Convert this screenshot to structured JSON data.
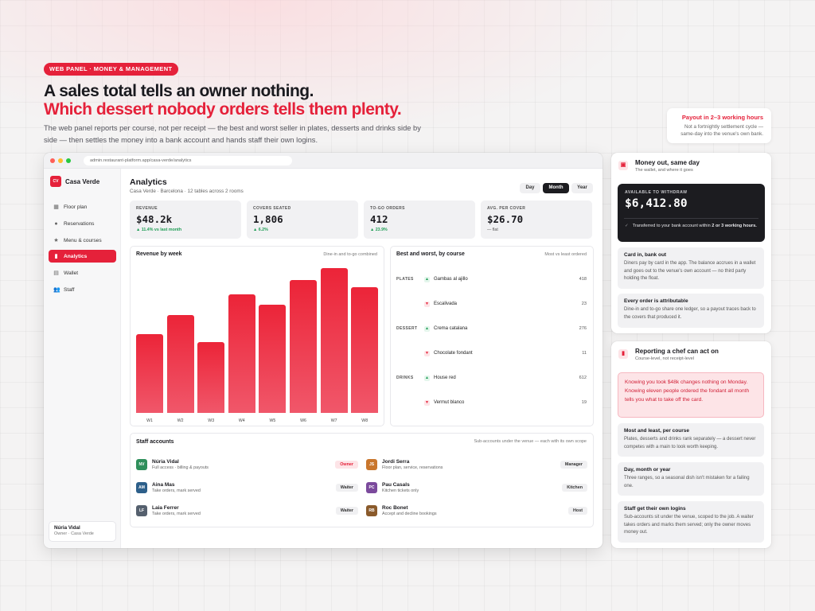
{
  "hero": {
    "eyebrow": "Web panel · Money & Management",
    "headline_1": "A sales total tells an owner nothing.",
    "headline_2": "Which dessert nobody orders tells them plenty.",
    "lede": "The web panel reports per course, not per receipt — the best and worst seller in plates, desserts and drinks side by side — then settles the money into a bank account and hands staff their own logins."
  },
  "payout_note": {
    "title": "Payout in 2–3 working hours",
    "text": "Not a fortnightly settlement cycle — same-day into the venue's own bank."
  },
  "browser": {
    "url": "admin.restaurant-platform.app/casa-verde/analytics"
  },
  "sidebar": {
    "logo": "CV",
    "venue": "Casa Verde",
    "items": [
      {
        "label": "Floor plan",
        "icon": "grid-icon"
      },
      {
        "label": "Reservations",
        "icon": "circle-icon"
      },
      {
        "label": "Menu & courses",
        "icon": "star-icon"
      },
      {
        "label": "Analytics",
        "icon": "bar-chart-icon"
      },
      {
        "label": "Wallet",
        "icon": "wallet-icon"
      },
      {
        "label": "Staff",
        "icon": "people-icon"
      }
    ],
    "active": "Analytics",
    "user": {
      "name": "Núria Vidal",
      "role": "Owner · Casa Verde"
    }
  },
  "page": {
    "title": "Analytics",
    "subtitle": "Casa Verde · Barcelona · 12 tables across 2 rooms",
    "ranges": [
      "Day",
      "Month",
      "Year"
    ],
    "selected_range": "Month"
  },
  "kpis": [
    {
      "label": "REVENUE",
      "value": "$48.2k",
      "delta": "▲ 11.4% vs last month"
    },
    {
      "label": "COVERS SEATED",
      "value": "1,806",
      "delta": "▲ 6.2%"
    },
    {
      "label": "TO-GO ORDERS",
      "value": "412",
      "delta": "▲ 23.9%"
    },
    {
      "label": "AVG. PER COVER",
      "value": "$26.70",
      "delta": "— flat"
    }
  ],
  "revenue_chart": {
    "title": "Revenue by week",
    "subtitle": "Dine-in and to-go combined"
  },
  "chart_data": {
    "type": "bar",
    "categories": [
      "W1",
      "W2",
      "W3",
      "W4",
      "W5",
      "W6",
      "W7",
      "W8"
    ],
    "values": [
      0.53,
      0.66,
      0.48,
      0.8,
      0.73,
      0.9,
      0.98,
      0.85
    ],
    "title": "Revenue by week",
    "xlabel": "",
    "ylabel": "",
    "ylim": [
      0,
      1
    ],
    "grid": false
  },
  "best_worst": {
    "title": "Best and worst, by course",
    "subtitle": "Most vs least ordered",
    "rows": [
      {
        "category": "PLATES",
        "trend": "up",
        "name": "Gambas al ajillo",
        "count": "418"
      },
      {
        "category": "",
        "trend": "down",
        "name": "Escalivada",
        "count": "23"
      },
      {
        "category": "DESSERT",
        "trend": "up",
        "name": "Crema catalana",
        "count": "276"
      },
      {
        "category": "",
        "trend": "down",
        "name": "Chocolate fondant",
        "count": "11"
      },
      {
        "category": "DRINKS",
        "trend": "up",
        "name": "House red",
        "count": "612"
      },
      {
        "category": "",
        "trend": "down",
        "name": "Vermut blanco",
        "count": "19"
      }
    ]
  },
  "staff": {
    "title": "Staff accounts",
    "subtitle": "Sub-accounts under the venue — each with its own scope",
    "members": [
      {
        "initials": "NV",
        "name": "Núria Vidal",
        "scope": "Full access · billing & payouts",
        "role": "Owner",
        "color": "#2f8f5b"
      },
      {
        "initials": "JS",
        "name": "Jordi Serra",
        "scope": "Floor plan, service, reservations",
        "role": "Manager",
        "color": "#c9762c"
      },
      {
        "initials": "AM",
        "name": "Aina Mas",
        "scope": "Take orders, mark served",
        "role": "Waiter",
        "color": "#2d5f8a"
      },
      {
        "initials": "PC",
        "name": "Pau Casals",
        "scope": "Kitchen tickets only",
        "role": "Kitchen",
        "color": "#7b4a9c"
      },
      {
        "initials": "LF",
        "name": "Laia Ferrer",
        "scope": "Take orders, mark served",
        "role": "Waiter",
        "color": "#55606e"
      },
      {
        "initials": "RB",
        "name": "Roc Bonet",
        "scope": "Accept and decline bookings",
        "role": "Host",
        "color": "#8a5a2b"
      }
    ]
  },
  "money_panel": {
    "title": "Money out, same day",
    "subtitle": "The wallet, and where it goes",
    "balance_label": "AVAILABLE TO WITHDRAW",
    "balance": "$6,412.80",
    "transfer_text": "Transferred to your bank account within",
    "transfer_bold": "2 or 3 working hours.",
    "notes": [
      {
        "title": "Card in, bank out",
        "body": "Diners pay by card in the app. The balance accrues in a wallet and goes out to the venue's own account — no third party holding the float."
      },
      {
        "title": "Every order is attributable",
        "body": "Dine-in and to-go share one ledger, so a payout traces back to the covers that produced it."
      }
    ]
  },
  "report_panel": {
    "title": "Reporting a chef can act on",
    "subtitle": "Course-level, not receipt-level",
    "quote": "Knowing you took $48k changes nothing on Monday. Knowing eleven people ordered the fondant all month tells you what to take off the card.",
    "notes": [
      {
        "title": "Most and least, per course",
        "body": "Plates, desserts and drinks rank separately — a dessert never competes with a main to look worth keeping."
      },
      {
        "title": "Day, month or year",
        "body": "Three ranges, so a seasonal dish isn't mistaken for a failing one."
      },
      {
        "title": "Staff get their own logins",
        "body": "Sub-accounts sit under the venue, scoped to the job. A waiter takes orders and marks them served; only the owner moves money out."
      }
    ]
  },
  "colors": {
    "accent": "#e5213a",
    "positive": "#1f9d55",
    "dark": "#1c1c20"
  }
}
